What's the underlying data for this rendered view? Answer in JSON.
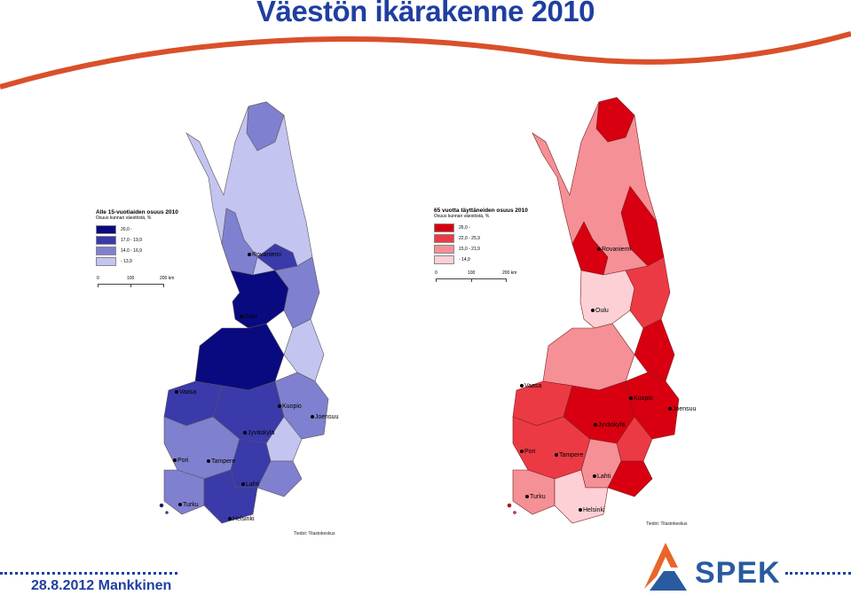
{
  "title": "Väestön ikärakenne 2010",
  "footer": {
    "date_author": "28.8.2012 Mankkinen",
    "logo_text": "SPEK"
  },
  "maps": [
    {
      "id": "left",
      "legend_title": "Alle 15-vuotiaiden osuus 2010",
      "legend_subtitle": "Osuus kunnan väestöstä, %",
      "classes": [
        {
          "label": "20,0 -",
          "color": "#0a0a80"
        },
        {
          "label": "17,0 - 19,9",
          "color": "#3a3aaa"
        },
        {
          "label": "14,0 - 16,9",
          "color": "#8080d0"
        },
        {
          "label": "- 13,9",
          "color": "#c4c4f0"
        }
      ],
      "scale": {
        "ticks": [
          "0",
          "100",
          "200 km"
        ]
      },
      "source": "Tiedot: Tilastokeskus",
      "cities": [
        "Rovaniemi",
        "Oulu",
        "Vaasa",
        "Kuopio",
        "Joensuu",
        "Jyväskylä",
        "Pori",
        "Tampere",
        "Lahti",
        "Turku",
        "Helsinki"
      ]
    },
    {
      "id": "right",
      "legend_title": "65 vuotta täyttäneiden osuus 2010",
      "legend_subtitle": "Osuus kunnan väestöstä, %",
      "classes": [
        {
          "label": "26,0 -",
          "color": "#d80010"
        },
        {
          "label": "22,0 - 25,9",
          "color": "#ec3a44"
        },
        {
          "label": "15,0 - 21,9",
          "color": "#f59096"
        },
        {
          "label": "- 14,9",
          "color": "#fcd0d4"
        }
      ],
      "scale": {
        "ticks": [
          "0",
          "100",
          "200 km"
        ]
      },
      "source": "Tiedot: Tilastokeskus",
      "cities": [
        "Rovaniemi",
        "Oulu",
        "Vaasa",
        "Kuopio",
        "Joensuu",
        "Jyväskylä",
        "Pori",
        "Tampere",
        "Lahti",
        "Turku",
        "Helsinki"
      ]
    }
  ],
  "colors": {
    "title": "#1f3fa0",
    "swoosh": "#d9502a",
    "logo_orange": "#e8662a",
    "logo_blue": "#2a5aa0"
  }
}
